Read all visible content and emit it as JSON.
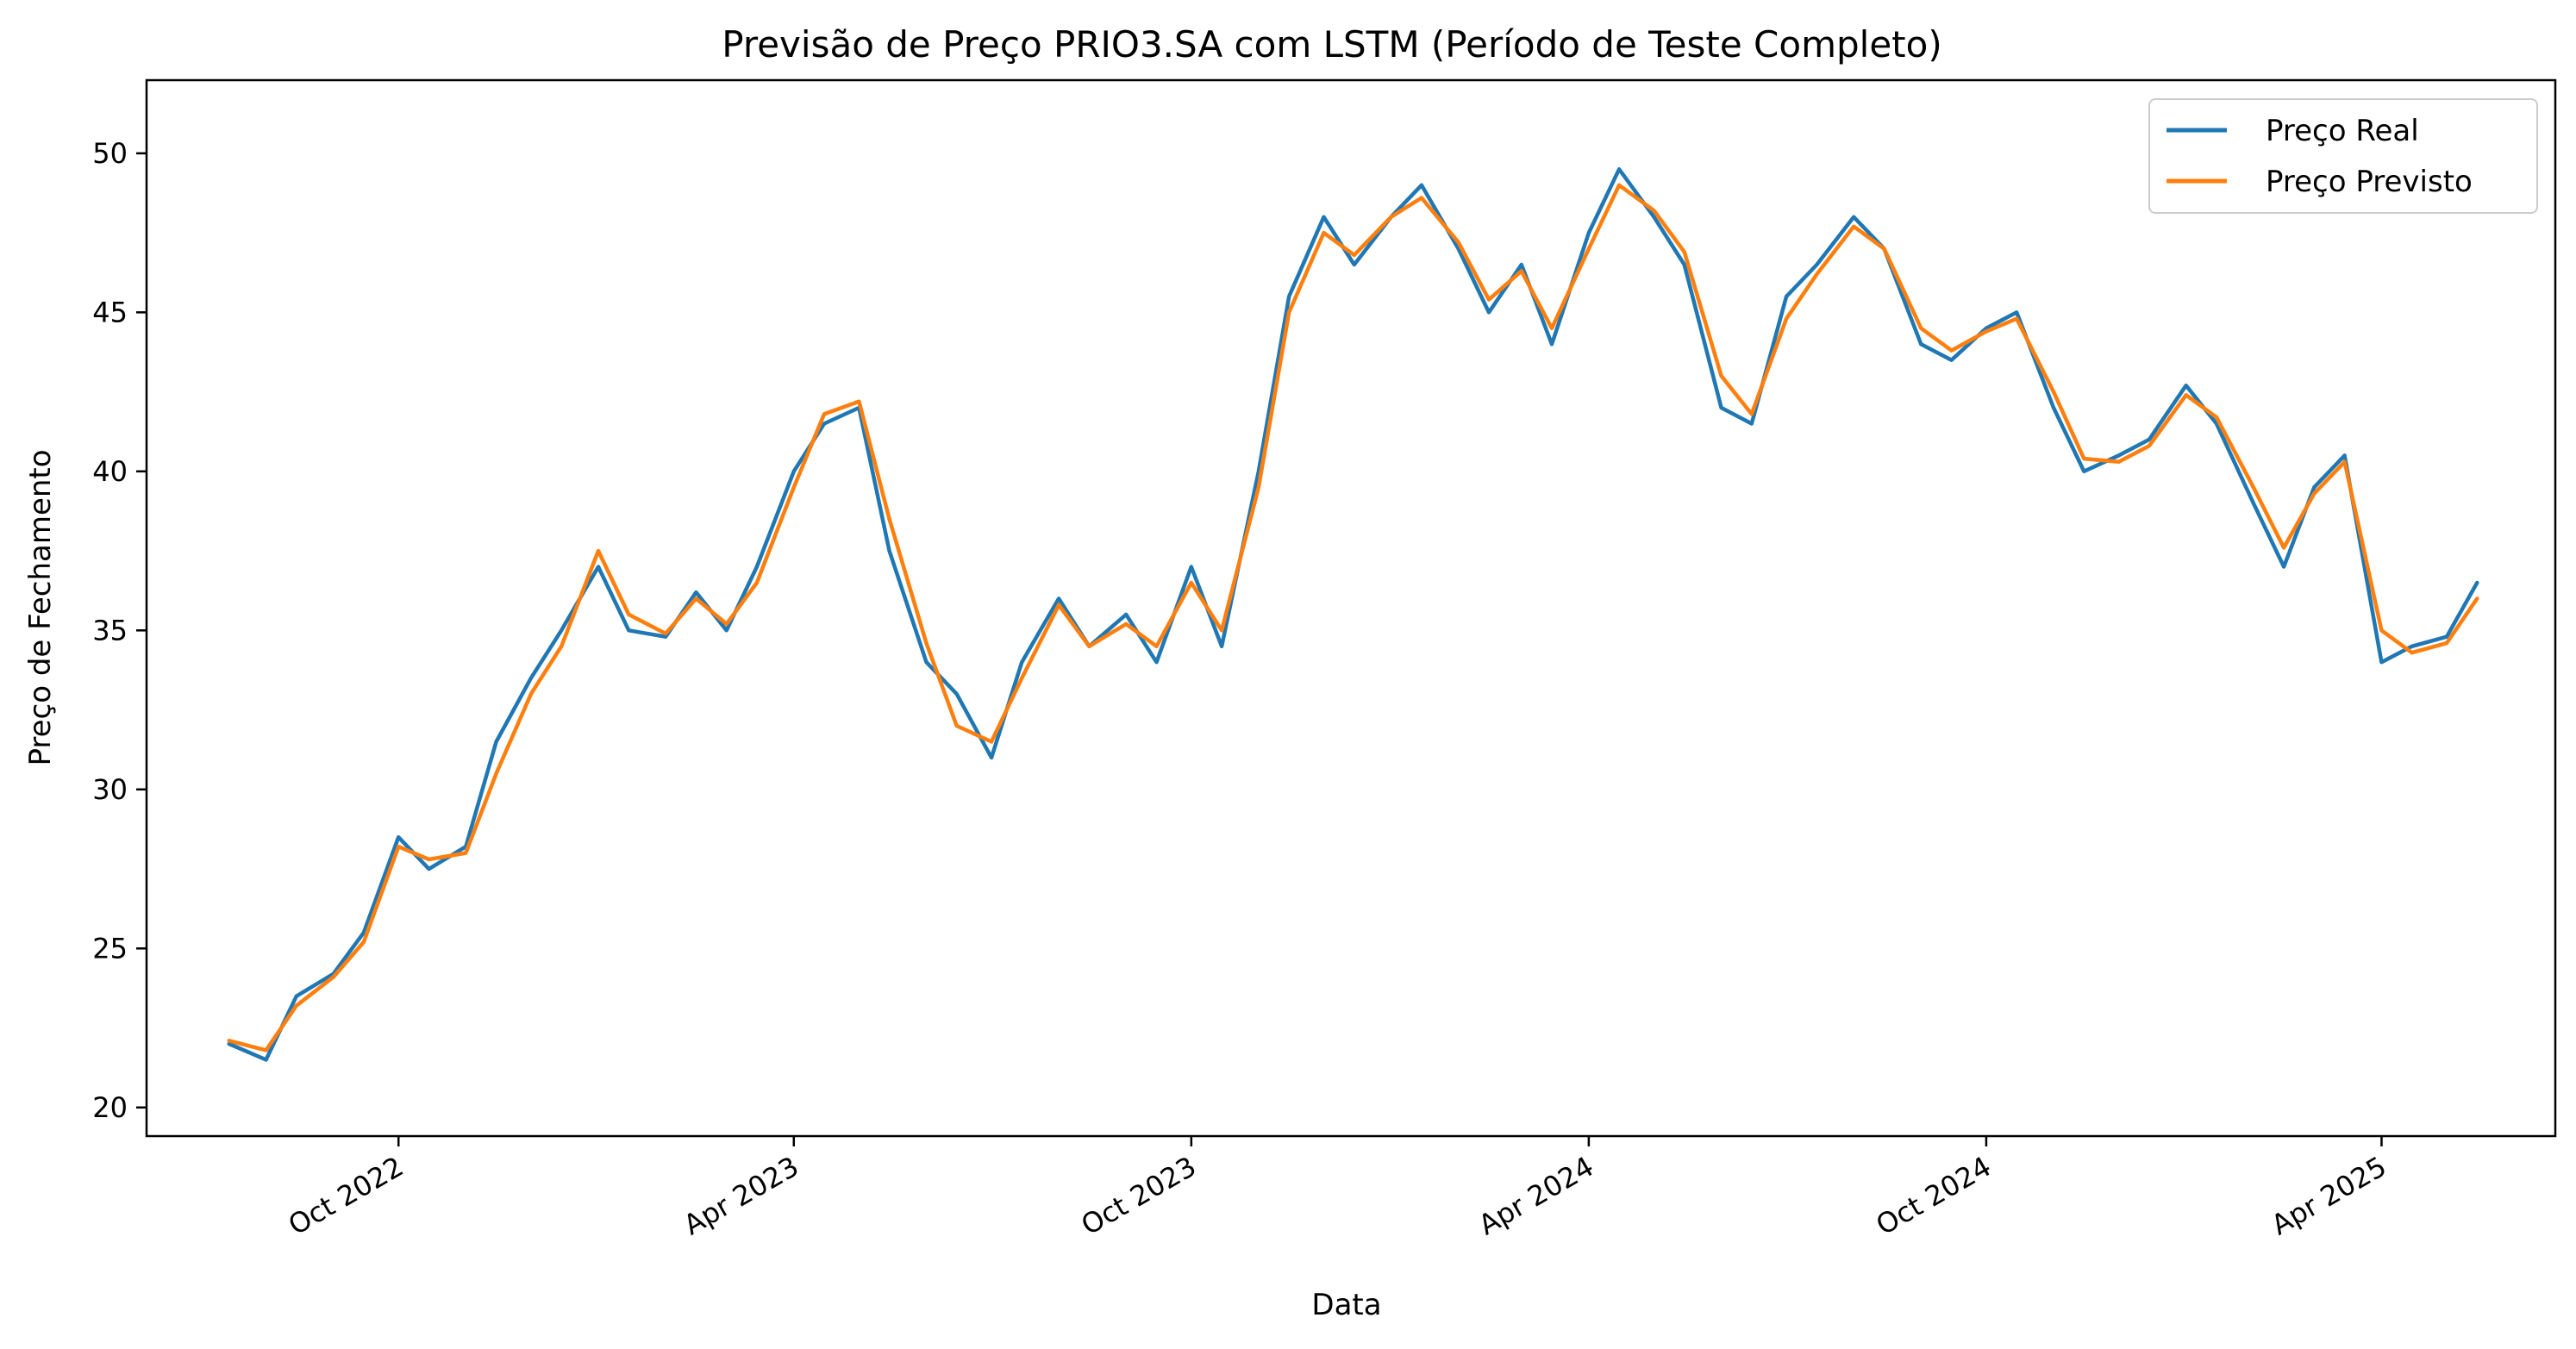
{
  "chart_data": {
    "type": "line",
    "title": "Previsão de Preço PRIO3.SA com LSTM (Período de Teste Completo)",
    "xlabel": "Data",
    "ylabel": "Preço de Fechamento",
    "ylim": [
      19.1,
      52.3
    ],
    "xlim": [
      "2022-06-07",
      "2025-06-20"
    ],
    "y_ticks": [
      20,
      25,
      30,
      35,
      40,
      45,
      50
    ],
    "x_ticks": [
      {
        "date": "2022-10-01",
        "label": "Oct 2022"
      },
      {
        "date": "2023-04-01",
        "label": "Apr 2023"
      },
      {
        "date": "2023-10-01",
        "label": "Oct 2023"
      },
      {
        "date": "2024-04-01",
        "label": "Apr 2024"
      },
      {
        "date": "2024-10-01",
        "label": "Oct 2024"
      },
      {
        "date": "2025-04-01",
        "label": "Apr 2025"
      }
    ],
    "grid": false,
    "legend_position": "top-right",
    "x": [
      "2022-07-15",
      "2022-08-01",
      "2022-08-15",
      "2022-09-01",
      "2022-09-15",
      "2022-10-01",
      "2022-10-15",
      "2022-11-01",
      "2022-11-15",
      "2022-12-01",
      "2022-12-15",
      "2023-01-01",
      "2023-01-15",
      "2023-02-01",
      "2023-02-15",
      "2023-03-01",
      "2023-03-15",
      "2023-04-01",
      "2023-04-15",
      "2023-05-01",
      "2023-05-15",
      "2023-06-01",
      "2023-06-15",
      "2023-07-01",
      "2023-07-15",
      "2023-08-01",
      "2023-08-15",
      "2023-09-01",
      "2023-09-15",
      "2023-10-01",
      "2023-10-15",
      "2023-11-01",
      "2023-11-15",
      "2023-12-01",
      "2023-12-15",
      "2024-01-01",
      "2024-01-15",
      "2024-02-01",
      "2024-02-15",
      "2024-03-01",
      "2024-03-15",
      "2024-04-01",
      "2024-04-15",
      "2024-05-01",
      "2024-05-15",
      "2024-06-01",
      "2024-06-15",
      "2024-07-01",
      "2024-07-15",
      "2024-08-01",
      "2024-08-15",
      "2024-09-01",
      "2024-09-15",
      "2024-10-01",
      "2024-10-15",
      "2024-11-01",
      "2024-11-15",
      "2024-12-01",
      "2024-12-15",
      "2025-01-01",
      "2025-01-15",
      "2025-02-01",
      "2025-02-15",
      "2025-03-01",
      "2025-03-15",
      "2025-04-01",
      "2025-04-15",
      "2025-05-01",
      "2025-05-15"
    ],
    "series": [
      {
        "name": "Preço Real",
        "color": "#1f77b4",
        "values": [
          22.0,
          21.5,
          23.5,
          24.2,
          25.5,
          28.5,
          27.5,
          28.2,
          31.5,
          33.5,
          35.0,
          37.0,
          35.0,
          34.8,
          36.2,
          35.0,
          37.0,
          40.0,
          41.5,
          42.0,
          37.5,
          34.0,
          33.0,
          31.0,
          34.0,
          36.0,
          34.5,
          35.5,
          34.0,
          37.0,
          34.5,
          40.0,
          45.5,
          48.0,
          46.5,
          48.0,
          49.0,
          47.0,
          45.0,
          46.5,
          44.0,
          47.5,
          49.5,
          48.0,
          46.5,
          42.0,
          41.5,
          45.5,
          46.5,
          48.0,
          47.0,
          44.0,
          43.5,
          44.5,
          45.0,
          42.0,
          40.0,
          40.5,
          41.0,
          42.7,
          41.5,
          39.0,
          37.0,
          39.5,
          40.5,
          34.0,
          34.5,
          34.8,
          36.5
        ]
      },
      {
        "name": "Preço Previsto",
        "color": "#ff7f0e",
        "values": [
          22.1,
          21.8,
          23.2,
          24.1,
          25.2,
          28.2,
          27.8,
          28.0,
          30.5,
          33.0,
          34.5,
          37.5,
          35.5,
          34.9,
          36.0,
          35.2,
          36.5,
          39.5,
          41.8,
          42.2,
          38.5,
          34.6,
          32.0,
          31.5,
          33.5,
          35.8,
          34.5,
          35.2,
          34.5,
          36.5,
          35.0,
          39.5,
          45.0,
          47.5,
          46.8,
          48.0,
          48.6,
          47.2,
          45.4,
          46.3,
          44.5,
          47.0,
          49.0,
          48.2,
          46.9,
          43.0,
          41.8,
          44.8,
          46.2,
          47.7,
          47.0,
          44.5,
          43.8,
          44.4,
          44.8,
          42.5,
          40.4,
          40.3,
          40.8,
          42.4,
          41.7,
          39.5,
          37.6,
          39.3,
          40.3,
          35.0,
          34.3,
          34.6,
          36.0
        ]
      }
    ]
  }
}
